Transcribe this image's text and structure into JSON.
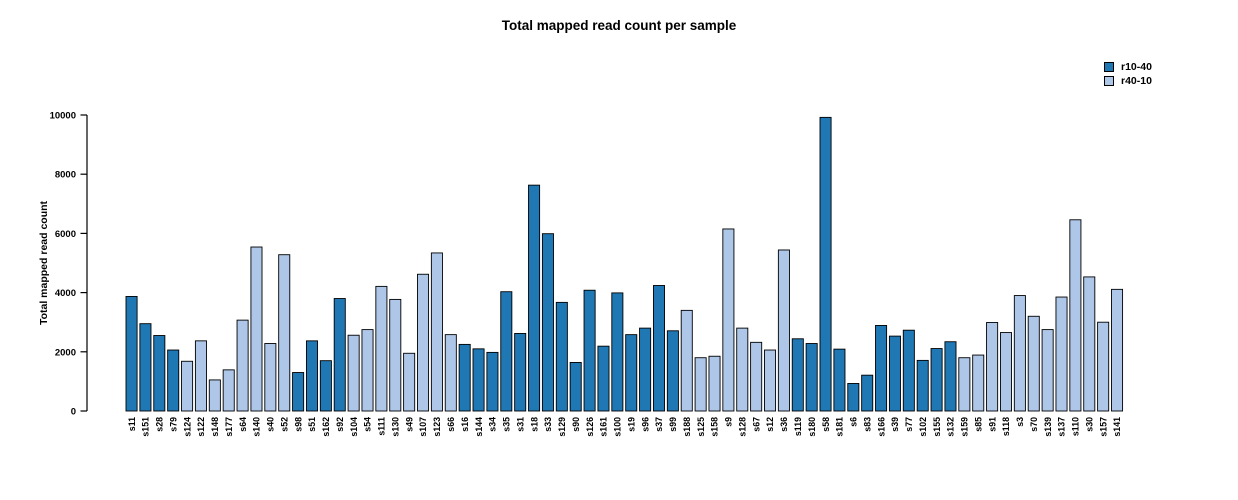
{
  "chart_data": {
    "type": "bar",
    "title": "Total mapped read count per sample",
    "ylabel": "Total mapped read count",
    "xlabel": "",
    "ylim": [
      0,
      10000
    ],
    "yticks": [
      0,
      2000,
      4000,
      6000,
      8000,
      10000
    ],
    "grid": false,
    "legend_position": "top-right",
    "legend": [
      {
        "name": "r10-40",
        "color": "#1f77b4"
      },
      {
        "name": "r40-10",
        "color": "#aec7e8"
      }
    ],
    "bars": [
      {
        "sample": "s11",
        "value": 3870,
        "series": "r10-40"
      },
      {
        "sample": "s151",
        "value": 2950,
        "series": "r10-40"
      },
      {
        "sample": "s28",
        "value": 2550,
        "series": "r10-40"
      },
      {
        "sample": "s79",
        "value": 2060,
        "series": "r10-40"
      },
      {
        "sample": "s124",
        "value": 1680,
        "series": "r40-10"
      },
      {
        "sample": "s122",
        "value": 2370,
        "series": "r40-10"
      },
      {
        "sample": "s148",
        "value": 1050,
        "series": "r40-10"
      },
      {
        "sample": "s177",
        "value": 1390,
        "series": "r40-10"
      },
      {
        "sample": "s64",
        "value": 3070,
        "series": "r40-10"
      },
      {
        "sample": "s140",
        "value": 5540,
        "series": "r40-10"
      },
      {
        "sample": "s40",
        "value": 2280,
        "series": "r40-10"
      },
      {
        "sample": "s52",
        "value": 5280,
        "series": "r40-10"
      },
      {
        "sample": "s98",
        "value": 1300,
        "series": "r10-40"
      },
      {
        "sample": "s51",
        "value": 2370,
        "series": "r10-40"
      },
      {
        "sample": "s162",
        "value": 1700,
        "series": "r10-40"
      },
      {
        "sample": "s92",
        "value": 3800,
        "series": "r10-40"
      },
      {
        "sample": "s104",
        "value": 2560,
        "series": "r40-10"
      },
      {
        "sample": "s54",
        "value": 2750,
        "series": "r40-10"
      },
      {
        "sample": "s111",
        "value": 4210,
        "series": "r40-10"
      },
      {
        "sample": "s130",
        "value": 3770,
        "series": "r40-10"
      },
      {
        "sample": "s49",
        "value": 1950,
        "series": "r40-10"
      },
      {
        "sample": "s107",
        "value": 4620,
        "series": "r40-10"
      },
      {
        "sample": "s123",
        "value": 5340,
        "series": "r40-10"
      },
      {
        "sample": "s66",
        "value": 2580,
        "series": "r40-10"
      },
      {
        "sample": "s16",
        "value": 2250,
        "series": "r10-40"
      },
      {
        "sample": "s144",
        "value": 2100,
        "series": "r10-40"
      },
      {
        "sample": "s34",
        "value": 1980,
        "series": "r10-40"
      },
      {
        "sample": "s35",
        "value": 4030,
        "series": "r10-40"
      },
      {
        "sample": "s31",
        "value": 2620,
        "series": "r10-40"
      },
      {
        "sample": "s18",
        "value": 7630,
        "series": "r10-40"
      },
      {
        "sample": "s33",
        "value": 5990,
        "series": "r10-40"
      },
      {
        "sample": "s129",
        "value": 3670,
        "series": "r10-40"
      },
      {
        "sample": "s90",
        "value": 1640,
        "series": "r10-40"
      },
      {
        "sample": "s126",
        "value": 4080,
        "series": "r10-40"
      },
      {
        "sample": "s161",
        "value": 2190,
        "series": "r10-40"
      },
      {
        "sample": "s100",
        "value": 3990,
        "series": "r10-40"
      },
      {
        "sample": "s19",
        "value": 2580,
        "series": "r10-40"
      },
      {
        "sample": "s96",
        "value": 2800,
        "series": "r10-40"
      },
      {
        "sample": "s37",
        "value": 4240,
        "series": "r10-40"
      },
      {
        "sample": "s99",
        "value": 2710,
        "series": "r10-40"
      },
      {
        "sample": "s188",
        "value": 3400,
        "series": "r40-10"
      },
      {
        "sample": "s125",
        "value": 1800,
        "series": "r40-10"
      },
      {
        "sample": "s158",
        "value": 1850,
        "series": "r40-10"
      },
      {
        "sample": "s9",
        "value": 6150,
        "series": "r40-10"
      },
      {
        "sample": "s128",
        "value": 2800,
        "series": "r40-10"
      },
      {
        "sample": "s67",
        "value": 2320,
        "series": "r40-10"
      },
      {
        "sample": "s12",
        "value": 2060,
        "series": "r40-10"
      },
      {
        "sample": "s36",
        "value": 5440,
        "series": "r40-10"
      },
      {
        "sample": "s119",
        "value": 2440,
        "series": "r10-40"
      },
      {
        "sample": "s180",
        "value": 2280,
        "series": "r10-40"
      },
      {
        "sample": "s58",
        "value": 9920,
        "series": "r10-40"
      },
      {
        "sample": "s181",
        "value": 2090,
        "series": "r10-40"
      },
      {
        "sample": "s6",
        "value": 930,
        "series": "r10-40"
      },
      {
        "sample": "s83",
        "value": 1210,
        "series": "r10-40"
      },
      {
        "sample": "s166",
        "value": 2890,
        "series": "r10-40"
      },
      {
        "sample": "s39",
        "value": 2530,
        "series": "r10-40"
      },
      {
        "sample": "s77",
        "value": 2730,
        "series": "r10-40"
      },
      {
        "sample": "s102",
        "value": 1710,
        "series": "r10-40"
      },
      {
        "sample": "s155",
        "value": 2110,
        "series": "r10-40"
      },
      {
        "sample": "s132",
        "value": 2340,
        "series": "r10-40"
      },
      {
        "sample": "s159",
        "value": 1800,
        "series": "r40-10"
      },
      {
        "sample": "s85",
        "value": 1890,
        "series": "r40-10"
      },
      {
        "sample": "s91",
        "value": 2990,
        "series": "r40-10"
      },
      {
        "sample": "s118",
        "value": 2650,
        "series": "r40-10"
      },
      {
        "sample": "s3",
        "value": 3900,
        "series": "r40-10"
      },
      {
        "sample": "s70",
        "value": 3200,
        "series": "r40-10"
      },
      {
        "sample": "s139",
        "value": 2750,
        "series": "r40-10"
      },
      {
        "sample": "s137",
        "value": 3850,
        "series": "r40-10"
      },
      {
        "sample": "s110",
        "value": 6460,
        "series": "r40-10"
      },
      {
        "sample": "s30",
        "value": 4530,
        "series": "r40-10"
      },
      {
        "sample": "s157",
        "value": 3000,
        "series": "r40-10"
      },
      {
        "sample": "s141",
        "value": 4110,
        "series": "r40-10"
      }
    ]
  }
}
